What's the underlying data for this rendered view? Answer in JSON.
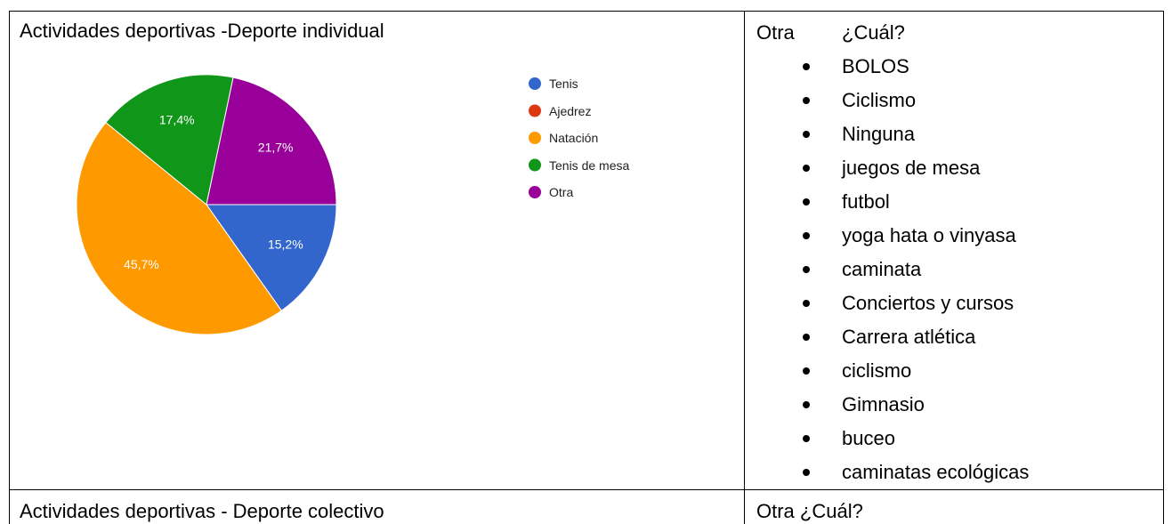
{
  "chart_data": {
    "type": "pie",
    "title": "Actividades deportivas -Deporte individual",
    "categories": [
      "Tenis",
      "Ajedrez",
      "Natación",
      "Tenis de mesa",
      "Otra"
    ],
    "values": [
      15.2,
      0,
      45.7,
      17.4,
      21.7
    ],
    "value_labels": [
      "15,2%",
      null,
      "45,7%",
      "17,4%",
      "21,7%"
    ],
    "colors": [
      "#3366cc",
      "#dc3912",
      "#ff9900",
      "#109618",
      "#990099"
    ]
  },
  "table": {
    "other_label": "Otra",
    "other_question": "¿Cuál?",
    "other_items": [
      "BOLOS",
      "Ciclismo",
      "Ninguna",
      "juegos de mesa",
      "futbol",
      "yoga hata o vinyasa",
      "caminata",
      "Conciertos y cursos",
      "Carrera atlética",
      "ciclismo",
      "Gimnasio",
      "buceo",
      "caminatas ecológicas"
    ],
    "row2_left": "Actividades deportivas - Deporte colectivo",
    "row2_right": "Otra ¿Cuál?"
  }
}
